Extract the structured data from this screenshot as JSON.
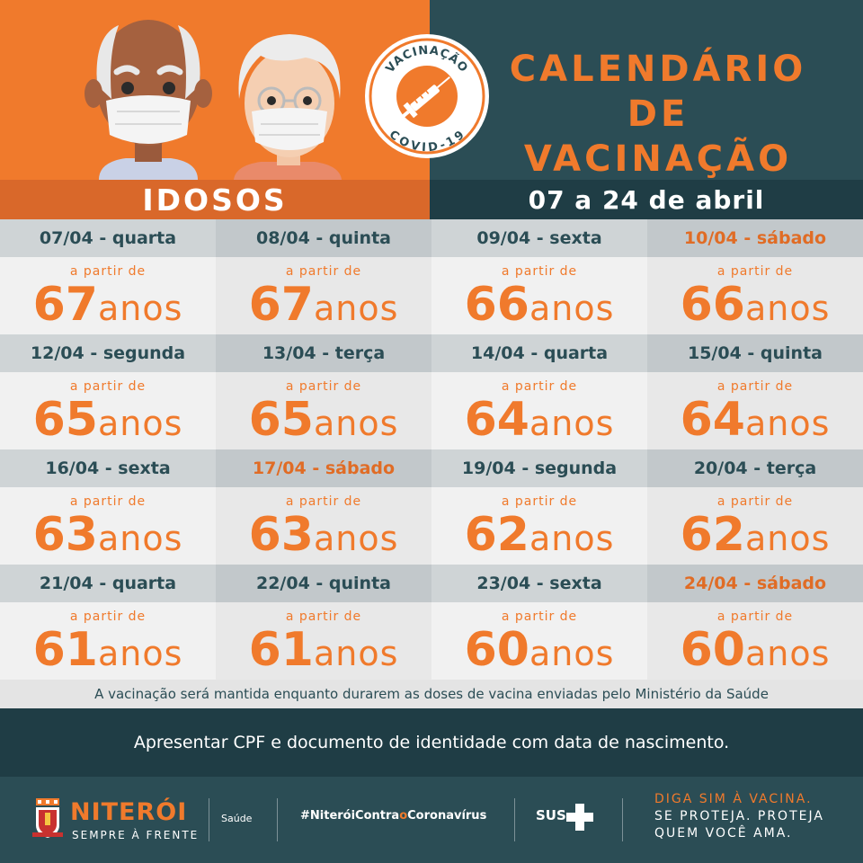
{
  "header": {
    "title_line1": "CALENDÁRIO",
    "title_line2": "DE VACINAÇÃO",
    "badge_top": "VACINAÇÃO",
    "badge_bottom": "COVID-19",
    "left_label": "IDOSOS",
    "right_label": "07 a 24 de abril"
  },
  "colors": {
    "orange": "#f07a2c",
    "teal": "#2b4d55",
    "dark_teal": "#1f3d45"
  },
  "calendar": {
    "prefix": "a partir de",
    "unit": "anos",
    "rows": [
      [
        {
          "day": "07/04 - quarta",
          "age": "67",
          "saturday": false
        },
        {
          "day": "08/04 - quinta",
          "age": "67",
          "saturday": false
        },
        {
          "day": "09/04 - sexta",
          "age": "66",
          "saturday": false
        },
        {
          "day": "10/04 - sábado",
          "age": "66",
          "saturday": true
        }
      ],
      [
        {
          "day": "12/04 - segunda",
          "age": "65",
          "saturday": false
        },
        {
          "day": "13/04 - terça",
          "age": "65",
          "saturday": false
        },
        {
          "day": "14/04 - quarta",
          "age": "64",
          "saturday": false
        },
        {
          "day": "15/04 - quinta",
          "age": "64",
          "saturday": false
        }
      ],
      [
        {
          "day": "16/04 - sexta",
          "age": "63",
          "saturday": false
        },
        {
          "day": "17/04 - sábado",
          "age": "63",
          "saturday": true
        },
        {
          "day": "19/04 - segunda",
          "age": "62",
          "saturday": false
        },
        {
          "day": "20/04 - terça",
          "age": "62",
          "saturday": false
        }
      ],
      [
        {
          "day": "21/04 - quarta",
          "age": "61",
          "saturday": false
        },
        {
          "day": "22/04 - quinta",
          "age": "61",
          "saturday": false
        },
        {
          "day": "23/04 - sexta",
          "age": "60",
          "saturday": false
        },
        {
          "day": "24/04 - sábado",
          "age": "60",
          "saturday": true
        }
      ]
    ]
  },
  "note": "A vacinação será mantida enquanto durarem as doses de vacina enviadas pelo Ministério da Saúde",
  "requirement": "Apresentar CPF e documento de identidade com data de nascimento.",
  "footer": {
    "city_name": "NITERÓI",
    "city_tagline": "SEMPRE À FRENTE",
    "department": "Saúde",
    "hashtag_pre": "#NiteróiContra",
    "hashtag_o": "o",
    "hashtag_post": "Coronavírus",
    "sus": "SUS",
    "slogan_line1": "DIGA SIM À VACINA.",
    "slogan_line2": "SE PROTEJA. PROTEJA",
    "slogan_line3": "QUEM VOCÊ AMA."
  }
}
